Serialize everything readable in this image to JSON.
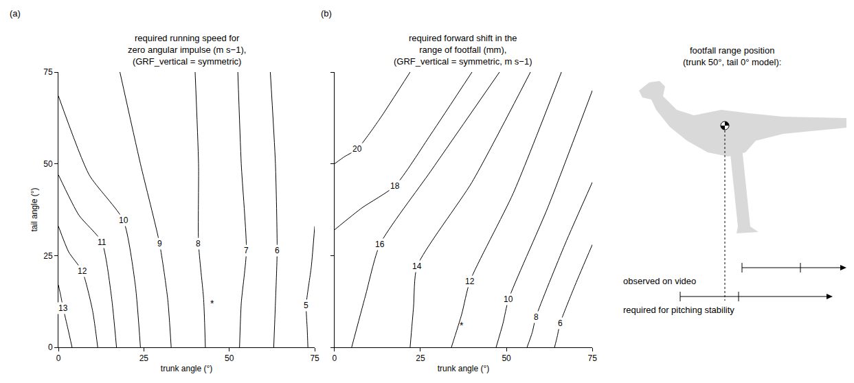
{
  "chart_data": [
    {
      "type": "contour_lines",
      "panel_label": "(a)",
      "title": "required running speed for zero angular impulse (m s−1), (GRF_vertical = symmetric)",
      "xlabel": "trunk angle (°)",
      "ylabel": "tail angle (°)",
      "xlim": [
        0,
        75
      ],
      "ylim": [
        0,
        75
      ],
      "xticks": [
        0,
        25,
        50,
        75
      ],
      "yticks": [
        0,
        25,
        50,
        75
      ],
      "grid": false,
      "color": "#000000",
      "series": [
        {
          "name": "13",
          "x": [
            0,
            0.7,
            1.4,
            2.8,
            4
          ],
          "values": [
            17,
            14,
            10.7,
            5,
            0
          ]
        },
        {
          "name": "12",
          "x": [
            0,
            3,
            7,
            10,
            11.5
          ],
          "values": [
            33,
            26,
            20.7,
            10,
            0
          ]
        },
        {
          "name": "11",
          "x": [
            0,
            6,
            12.7,
            15.5,
            17
          ],
          "values": [
            47,
            36,
            28.7,
            14,
            0
          ]
        },
        {
          "name": "10",
          "x": [
            0,
            9,
            19,
            22.5,
            24
          ],
          "values": [
            68.5,
            47,
            34.6,
            17,
            0
          ]
        },
        {
          "name": "9",
          "x": [
            18,
            24,
            29.6,
            32,
            33
          ],
          "values": [
            75,
            50,
            28.3,
            13,
            0
          ]
        },
        {
          "name": "8",
          "x": [
            40,
            41,
            41,
            42.5,
            43
          ],
          "values": [
            75,
            50,
            28.3,
            13,
            0
          ]
        },
        {
          "name": "7",
          "x": [
            52.5,
            53.5,
            55,
            53.5,
            53
          ],
          "values": [
            75,
            50,
            26.3,
            12,
            0
          ]
        },
        {
          "name": "6",
          "x": [
            62,
            63.5,
            64,
            63.5,
            63
          ],
          "values": [
            75,
            50,
            26.3,
            12,
            0
          ]
        },
        {
          "name": "5",
          "x": [
            75,
            74,
            72.5,
            72.8,
            73
          ],
          "values": [
            33,
            22,
            11.5,
            5,
            0
          ]
        }
      ],
      "annotations": [
        {
          "text": "*",
          "x": 45,
          "y": 11.9
        }
      ]
    },
    {
      "type": "contour_lines",
      "panel_label": "(b)",
      "title": "required forward shift in the range of footfall (mm), (GRF_vertical = symmetric, m s−1)",
      "xlabel": "trunk angle (°)",
      "xlim": [
        0,
        75
      ],
      "ylim": [
        0,
        75
      ],
      "xticks": [
        0,
        25,
        50,
        75
      ],
      "yticks": [
        0,
        25,
        50,
        75
      ],
      "tick_labels": "x",
      "grid": false,
      "color": "#000000",
      "series": [
        {
          "name": "20",
          "x": [
            0,
            3,
            6.6,
            13,
            22
          ],
          "values": [
            50,
            52,
            54,
            62,
            75
          ]
        },
        {
          "name": "18",
          "x": [
            0,
            8,
            17.6,
            28,
            40
          ],
          "values": [
            32,
            38,
            44,
            58,
            75
          ]
        },
        {
          "name": "16",
          "x": [
            5,
            9,
            13.2,
            28,
            48
          ],
          "values": [
            0,
            14,
            28,
            48,
            75
          ]
        },
        {
          "name": "14",
          "x": [
            22,
            23,
            24,
            40,
            57
          ],
          "values": [
            0,
            11,
            22,
            45,
            75
          ]
        },
        {
          "name": "12",
          "x": [
            34,
            37,
            39.4,
            52,
            66
          ],
          "values": [
            0,
            9,
            18,
            42,
            75
          ]
        },
        {
          "name": "10",
          "x": [
            47,
            49,
            50.6,
            62,
            75
          ],
          "values": [
            0,
            6.5,
            13,
            38,
            70
          ]
        },
        {
          "name": "8",
          "x": [
            56,
            57.5,
            58.6,
            67,
            75
          ],
          "values": [
            0,
            4,
            8.3,
            28,
            45
          ]
        },
        {
          "name": "6",
          "x": [
            64,
            64.8,
            65.6,
            70,
            75
          ],
          "values": [
            0,
            3,
            6.5,
            17,
            28
          ]
        }
      ],
      "annotations": [
        {
          "text": "*",
          "x": 37,
          "y": 6
        }
      ]
    }
  ],
  "schematic": {
    "title": "footfall range position (trunk 50°, tail 0° model):",
    "labels": [
      "observed on video",
      "required for pitching stability"
    ]
  }
}
